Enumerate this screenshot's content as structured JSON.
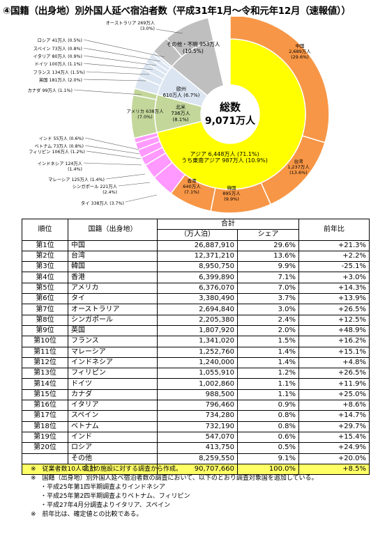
{
  "title": "④国籍（出身地）別外国人延べ宿泊者数（平成31年1月～令和元年12月（速報値））",
  "chart_data": {
    "type": "pie",
    "center_label": [
      "総数",
      "9,071万人"
    ],
    "inner_ring": [
      {
        "name": "アジア",
        "value": 6448,
        "share": 71.1,
        "label": [
          "アジア 6,448万人 (71.1%)",
          "うち東南アジア 987万人 (10.9%)"
        ],
        "color": "#ffff00"
      },
      {
        "name": "その他・不明",
        "value": 953,
        "share": 10.5,
        "label": [
          "その他・不明 953万人",
          "(10.5%)"
        ],
        "color": "#bfbfbf"
      },
      {
        "name": "欧州",
        "value": 610,
        "share": 6.7,
        "label": [
          "欧州",
          "610万人 (6.7%)"
        ],
        "color": "#dbe5f1"
      },
      {
        "name": "北米",
        "value": 736,
        "share": 8.1,
        "label": [
          "北米",
          "736万人",
          "(8.1%)"
        ],
        "color": "#c4d79b"
      }
    ],
    "outer_ring": [
      {
        "name": "中国",
        "value": 2689,
        "share": 29.6,
        "label": [
          "中国",
          "2,689万人",
          "(29.6%)"
        ],
        "color": "#f79646"
      },
      {
        "name": "台湾",
        "value": 1237,
        "share": 13.6,
        "label": [
          "台湾",
          "1,237万人",
          "(13.6%)"
        ],
        "color": "#f79646"
      },
      {
        "name": "韓国",
        "value": 895,
        "share": 9.9,
        "label": [
          "韓国",
          "895万人",
          "(9.9%)"
        ],
        "color": "#f79646"
      },
      {
        "name": "香港",
        "value": 640,
        "share": 7.1,
        "label": [
          "香港",
          "640万人",
          "(7.1%)"
        ],
        "color": "#f79646"
      },
      {
        "name": "タイ",
        "value": 338,
        "share": 3.7,
        "label": [
          "タイ 338万人 (3.7%)"
        ],
        "color": "#ff99ff"
      },
      {
        "name": "シンガポール",
        "value": 221,
        "share": 2.4,
        "label": [
          "シンガポール 221万人",
          "(2.4%)"
        ],
        "color": "#ff99ff"
      },
      {
        "name": "マレーシア",
        "value": 125,
        "share": 1.4,
        "label": [
          "マレーシア 125万人 (1.4%)"
        ],
        "color": "#ff99ff"
      },
      {
        "name": "インドネシア",
        "value": 124,
        "share": 1.4,
        "label": [
          "インドネシア 124万人",
          "(1.4%)"
        ],
        "color": "#ff99ff"
      },
      {
        "name": "フィリピン",
        "value": 106,
        "share": 1.2,
        "label": [
          "フィリピン 106万人 (1.2%)"
        ],
        "color": "#ff99ff"
      },
      {
        "name": "ベトナム",
        "value": 73,
        "share": 0.8,
        "label": [
          "ベトナム 73万人 (0.8%)"
        ],
        "color": "#ff99ff"
      },
      {
        "name": "インド",
        "value": 55,
        "share": 0.6,
        "label": [
          "インド 55万人 (0.6%)"
        ],
        "color": "#ff99ff"
      },
      {
        "name": "その他アジア",
        "value": -1,
        "share": 0,
        "label": [],
        "color": "#ff99ff"
      },
      {
        "name": "アメリカ",
        "value": 638,
        "share": 7.0,
        "label": [
          "アメリカ 638万人",
          "(7.0%)"
        ],
        "color": "#c4d79b"
      },
      {
        "name": "カナダ",
        "value": 99,
        "share": 1.1,
        "label": [
          "カナダ 99万人 (1.1%)"
        ],
        "color": "#c4d79b"
      },
      {
        "name": "英国",
        "value": 181,
        "share": 2.0,
        "label": [
          "英国 181万人 (2.0%)"
        ],
        "color": "#dbe5f1"
      },
      {
        "name": "フランス",
        "value": 134,
        "share": 1.5,
        "label": [
          "フランス 134万人 (1.5%)"
        ],
        "color": "#dbe5f1"
      },
      {
        "name": "ドイツ",
        "value": 100,
        "share": 1.1,
        "label": [
          "ドイツ 100万人 (1.1%)"
        ],
        "color": "#dbe5f1"
      },
      {
        "name": "イタリア",
        "value": 80,
        "share": 0.9,
        "label": [
          "イタリア 80万人 (0.9%)"
        ],
        "color": "#dbe5f1"
      },
      {
        "name": "スペイン",
        "value": 73,
        "share": 0.8,
        "label": [
          "スペイン 73万人 (0.8%)"
        ],
        "color": "#dbe5f1"
      },
      {
        "name": "ロシア",
        "value": 41,
        "share": 0.5,
        "label": [
          "ロシア 41万人 (0.5%)"
        ],
        "color": "#dbe5f1"
      },
      {
        "name": "その他欧州",
        "value": -1,
        "share": 0,
        "label": [],
        "color": "#dbe5f1"
      },
      {
        "name": "オーストラリア",
        "value": 269,
        "share": 3.0,
        "label": [
          "オーストラリア 269万人",
          "(3.0%)"
        ],
        "color": "#bfbfbf"
      },
      {
        "name": "その他・不明",
        "value": 684,
        "share": 7.5,
        "label": [],
        "color": "#bfbfbf"
      }
    ]
  },
  "table": {
    "headers": {
      "rank": "順位",
      "country": "国籍（出身地）",
      "total": "合計",
      "unit": "（万人泊）",
      "share": "シェア",
      "yoy": "前年比"
    },
    "rows": [
      [
        "第1位",
        "中国",
        "26,887,910",
        "29.6%",
        "+21.3%"
      ],
      [
        "第2位",
        "台湾",
        "12,371,210",
        "13.6%",
        "+2.2%"
      ],
      [
        "第3位",
        "韓国",
        "8,950,750",
        "9.9%",
        "-25.1%"
      ],
      [
        "第4位",
        "香港",
        "6,399,890",
        "7.1%",
        "+3.0%"
      ],
      [
        "第5位",
        "アメリカ",
        "6,376,070",
        "7.0%",
        "+14.3%"
      ],
      [
        "第6位",
        "タイ",
        "3,380,490",
        "3.7%",
        "+13.9%"
      ],
      [
        "第7位",
        "オーストラリア",
        "2,694,840",
        "3.0%",
        "+26.5%"
      ],
      [
        "第8位",
        "シンガポール",
        "2,205,380",
        "2.4%",
        "+12.5%"
      ],
      [
        "第9位",
        "英国",
        "1,807,920",
        "2.0%",
        "+48.9%"
      ],
      [
        "第10位",
        "フランス",
        "1,341,020",
        "1.5%",
        "+16.2%"
      ],
      [
        "第11位",
        "マレーシア",
        "1,252,760",
        "1.4%",
        "+15.1%"
      ],
      [
        "第12位",
        "インドネシア",
        "1,240,000",
        "1.4%",
        "+4.8%"
      ],
      [
        "第13位",
        "フィリピン",
        "1,055,910",
        "1.2%",
        "+26.5%"
      ],
      [
        "第14位",
        "ドイツ",
        "1,002,860",
        "1.1%",
        "+11.9%"
      ],
      [
        "第15位",
        "カナダ",
        "988,500",
        "1.1%",
        "+25.0%"
      ],
      [
        "第16位",
        "イタリア",
        "796,460",
        "0.9%",
        "+8.6%"
      ],
      [
        "第17位",
        "スペイン",
        "734,280",
        "0.8%",
        "+14.7%"
      ],
      [
        "第18位",
        "ベトナム",
        "732,190",
        "0.8%",
        "+29.7%"
      ],
      [
        "第19位",
        "インド",
        "547,070",
        "0.6%",
        "+15.4%"
      ],
      [
        "第20位",
        "ロシア",
        "413,750",
        "0.5%",
        "+24.9%"
      ],
      [
        "",
        "その他",
        "8,259,550",
        "9.1%",
        "+20.0%"
      ]
    ],
    "total_row": [
      "合計",
      "90,707,660",
      "100.0%",
      "+8.5%"
    ]
  },
  "notes": [
    "※　従業者数10人以上の施設に対する調査から作成。",
    "※　国籍（出身地）別外国人延べ宿泊者数の調査において、以下のとおり調査対象国を追加している。",
    "・平成25年第1四半期調査よりインドネシア",
    "・平成25年第2四半期調査よりベトナム、フィリピン",
    "・平成27年4月分調査よりイタリア、スペイン",
    "※　前年比は、確定値との比較である。"
  ]
}
